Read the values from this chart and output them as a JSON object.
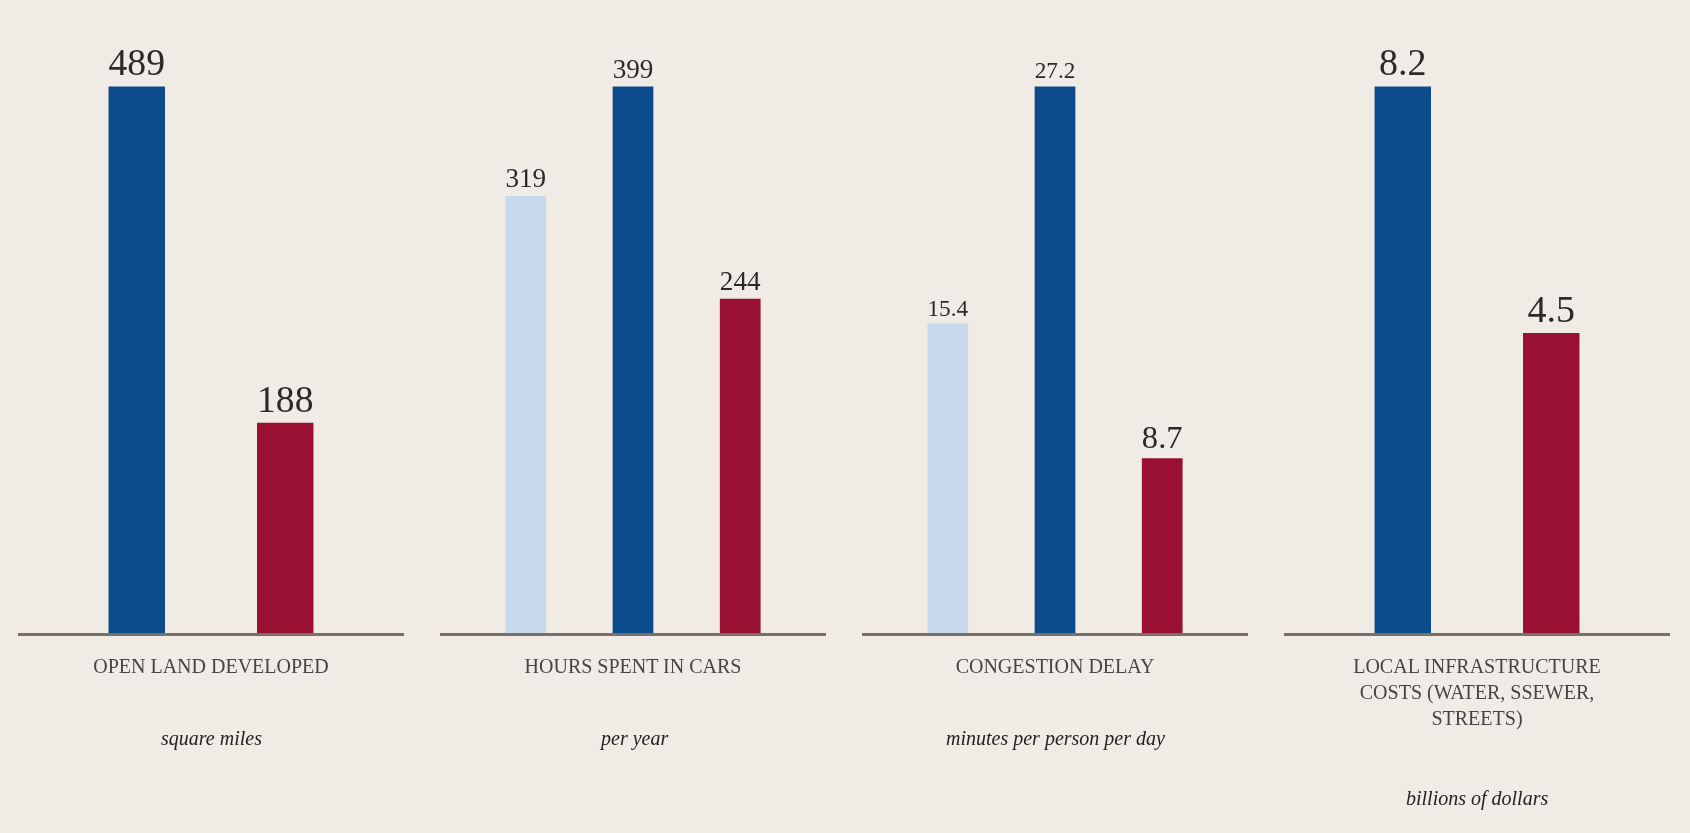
{
  "chart_data": [
    {
      "type": "bar",
      "categories": [
        null,
        null
      ],
      "values": [
        489,
        188
      ],
      "colors": [
        "#0b4a8b",
        "#9a1032"
      ],
      "data_labels": true,
      "xlabel": "OPEN LAND DEVELOPED",
      "annotations": [
        "square miles"
      ]
    },
    {
      "type": "bar",
      "categories": [
        null,
        null,
        null
      ],
      "values": [
        319,
        399,
        244
      ],
      "colors": [
        "#c9d9ec",
        "#0b4a8b",
        "#9a1032"
      ],
      "data_labels": true,
      "xlabel": "HOURS SPENT IN CARS",
      "annotations": [
        "per year"
      ]
    },
    {
      "type": "bar",
      "categories": [
        null,
        null,
        null
      ],
      "values": [
        15.4,
        27.2,
        8.7
      ],
      "colors": [
        "#c9d9ec",
        "#0b4a8b",
        "#9a1032"
      ],
      "data_labels": true,
      "xlabel": "CONGESTION DELAY",
      "annotations": [
        "minutes per person per day"
      ]
    },
    {
      "type": "bar",
      "categories": [
        null,
        null
      ],
      "values": [
        8.2,
        4.5
      ],
      "colors": [
        "#0b4a8b",
        "#9a1032"
      ],
      "data_labels": true,
      "xlabel": "LOCAL INFRASTRUCTURE COSTS (WATER, SSEWER, STREETS)",
      "annotations": [
        "billions of dollars"
      ]
    }
  ]
}
